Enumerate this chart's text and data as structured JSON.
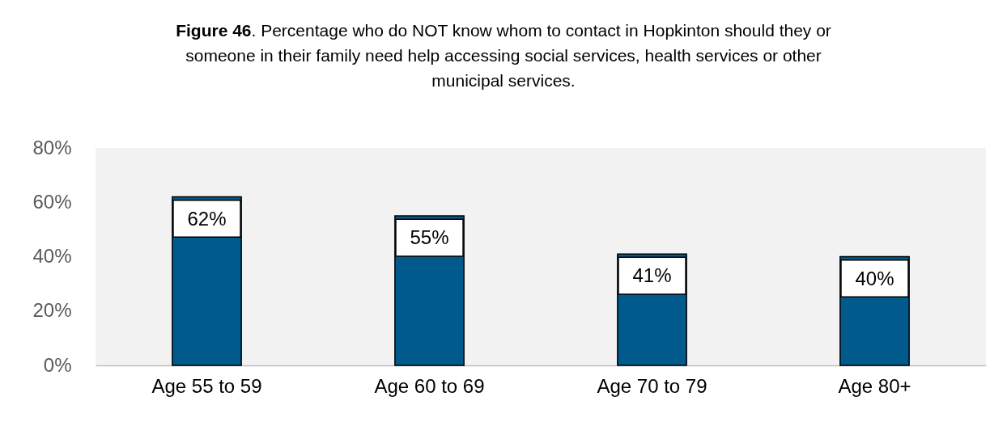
{
  "chart_data": {
    "type": "bar",
    "title": "Figure 46. Percentage who do NOT know whom to contact in Hopkinton should they or someone in their family need help accessing social services, health services or other municipal services.",
    "categories": [
      "Age 55 to 59",
      "Age 60 to 69",
      "Age 70 to 79",
      "Age 80+"
    ],
    "values": [
      62,
      55,
      41,
      40
    ],
    "value_labels": [
      "62%",
      "55%",
      "41%",
      "40%"
    ],
    "color": "#005a8c",
    "ylim": [
      0,
      80
    ],
    "yticks": [
      {
        "value": 0,
        "label": "0%"
      },
      {
        "value": 20,
        "label": "20%"
      },
      {
        "value": 40,
        "label": "40%"
      },
      {
        "value": 60,
        "label": "60%"
      },
      {
        "value": 80,
        "label": "80%"
      }
    ],
    "grid": false
  }
}
